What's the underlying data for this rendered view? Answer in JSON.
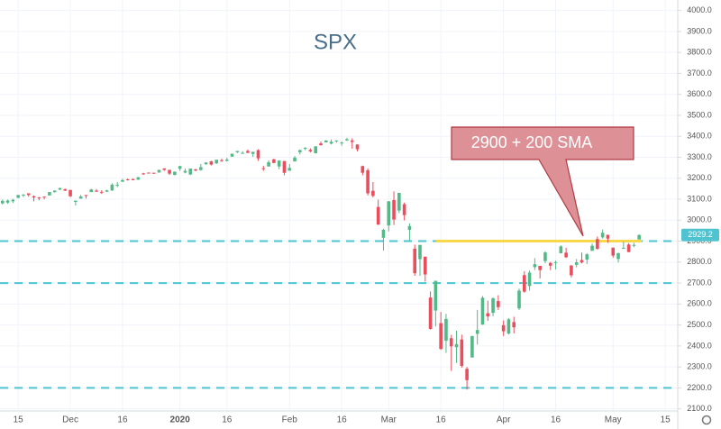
{
  "chart_data": {
    "type": "candlestick",
    "title": "SPX",
    "annotation": "2900 + 200 SMA",
    "up_color": "#53b987",
    "down_color": "#eb4d5c",
    "level_color": "#4fc3d0",
    "sma_color": "#f7d84a",
    "levels": [
      2900,
      2700,
      2200
    ],
    "sma_level": 2900,
    "grid": true,
    "ylim": [
      2090,
      4050
    ],
    "yticks": [
      {
        "value": 2100,
        "label": "2100.0"
      },
      {
        "value": 2200,
        "label": "2200.0"
      },
      {
        "value": 2300,
        "label": "2300.0"
      },
      {
        "value": 2400,
        "label": "2400.0"
      },
      {
        "value": 2500,
        "label": "2500.0"
      },
      {
        "value": 2600,
        "label": "2600.0"
      },
      {
        "value": 2700,
        "label": "2700.0"
      },
      {
        "value": 2800,
        "label": "2800.0"
      },
      {
        "value": 2900,
        "label": "2900.0"
      },
      {
        "value": 3000,
        "label": "3000.0"
      },
      {
        "value": 3100,
        "label": "3100.0"
      },
      {
        "value": 3200,
        "label": "3200.0"
      },
      {
        "value": 3300,
        "label": "3300.0"
      },
      {
        "value": 3400,
        "label": "3400.0"
      },
      {
        "value": 3500,
        "label": "3500.0"
      },
      {
        "value": 3600,
        "label": "3600.0"
      },
      {
        "value": 3700,
        "label": "3700.0"
      },
      {
        "value": 3800,
        "label": "3800.0"
      },
      {
        "value": 3900,
        "label": "3900.0"
      },
      {
        "value": 4000,
        "label": "4000.0"
      }
    ],
    "categories": [
      null,
      null,
      null,
      "15",
      null,
      null,
      null,
      null,
      null,
      null,
      null,
      null,
      null,
      "Dec",
      null,
      null,
      null,
      null,
      null,
      null,
      null,
      null,
      null,
      "16",
      null,
      null,
      null,
      null,
      null,
      null,
      null,
      null,
      null,
      null,
      "2020",
      null,
      null,
      null,
      null,
      null,
      null,
      null,
      null,
      "16",
      null,
      null,
      null,
      null,
      null,
      null,
      null,
      null,
      null,
      null,
      null,
      "Feb",
      null,
      null,
      null,
      null,
      null,
      null,
      null,
      null,
      null,
      "16",
      null,
      null,
      null,
      null,
      null,
      null,
      null,
      null,
      "Mar",
      null,
      null,
      null,
      null,
      null,
      null,
      null,
      null,
      null,
      "16",
      null,
      null,
      null,
      null,
      null,
      null,
      null,
      null,
      null,
      null,
      null,
      "Apr",
      null,
      null,
      null,
      null,
      null,
      null,
      null,
      null,
      null,
      "16",
      null,
      null,
      null,
      null,
      null,
      null,
      null,
      null,
      null,
      null,
      "May",
      null,
      null,
      null,
      null,
      null,
      null,
      null,
      null,
      null,
      "15"
    ],
    "ohlc": [
      [
        3080,
        3098,
        3075,
        3092
      ],
      [
        3084,
        3098,
        3078,
        3094
      ],
      [
        3090,
        3102,
        3082,
        3097
      ],
      [
        3107,
        3120,
        3104,
        3120
      ],
      [
        3118,
        3124,
        3110,
        3122
      ],
      [
        3128,
        3128,
        3112,
        3120
      ],
      [
        3114,
        3118,
        3090,
        3108
      ],
      [
        3108,
        3111,
        3095,
        3104
      ],
      [
        3112,
        3112,
        3099,
        3110
      ],
      [
        3118,
        3134,
        3117,
        3134
      ],
      [
        3134,
        3142,
        3131,
        3141
      ],
      [
        3146,
        3155,
        3143,
        3153
      ],
      [
        3148,
        3150,
        3139,
        3141
      ],
      [
        3144,
        3145,
        3110,
        3114
      ],
      [
        3087,
        3094,
        3070,
        3093
      ],
      [
        3103,
        3120,
        3102,
        3113
      ],
      [
        3120,
        3120,
        3103,
        3117
      ],
      [
        3134,
        3150,
        3134,
        3146
      ],
      [
        3141,
        3148,
        3135,
        3136
      ],
      [
        3135,
        3143,
        3125,
        3133
      ],
      [
        3136,
        3145,
        3134,
        3142
      ],
      [
        3142,
        3176,
        3139,
        3169
      ],
      [
        3167,
        3182,
        3157,
        3169
      ],
      [
        3183,
        3198,
        3183,
        3191
      ],
      [
        3195,
        3199,
        3189,
        3192
      ],
      [
        3196,
        3199,
        3190,
        3191
      ],
      [
        3193,
        3206,
        3192,
        3205
      ],
      [
        3223,
        3226,
        3216,
        3221
      ],
      [
        3227,
        3227,
        3222,
        3224
      ],
      [
        3226,
        3227,
        3222,
        3223
      ],
      [
        3227,
        3240,
        3227,
        3240
      ],
      [
        3247,
        3247,
        3235,
        3240
      ],
      [
        3240,
        3240,
        3216,
        3222
      ],
      [
        3216,
        3232,
        3213,
        3231
      ],
      [
        3245,
        3258,
        3235,
        3258
      ],
      [
        3227,
        3246,
        3223,
        3235
      ],
      [
        3218,
        3247,
        3215,
        3246
      ],
      [
        3242,
        3245,
        3233,
        3237
      ],
      [
        3239,
        3268,
        3236,
        3253
      ],
      [
        3267,
        3276,
        3264,
        3275
      ],
      [
        3281,
        3283,
        3261,
        3265
      ],
      [
        3271,
        3288,
        3268,
        3288
      ],
      [
        3286,
        3294,
        3278,
        3283
      ],
      [
        3283,
        3298,
        3280,
        3289
      ],
      [
        3303,
        3317,
        3302,
        3317
      ],
      [
        3324,
        3330,
        3320,
        3330
      ],
      [
        3321,
        3329,
        3316,
        3321
      ],
      [
        3330,
        3337,
        3320,
        3321
      ],
      [
        3316,
        3326,
        3302,
        3326
      ],
      [
        3334,
        3338,
        3283,
        3295
      ],
      [
        3248,
        3259,
        3235,
        3244
      ],
      [
        3256,
        3285,
        3256,
        3276
      ],
      [
        3290,
        3293,
        3271,
        3273
      ],
      [
        3256,
        3286,
        3243,
        3284
      ],
      [
        3282,
        3282,
        3214,
        3226
      ],
      [
        3236,
        3268,
        3236,
        3249
      ],
      [
        3280,
        3306,
        3280,
        3298
      ],
      [
        3324,
        3337,
        3313,
        3334
      ],
      [
        3345,
        3348,
        3334,
        3345
      ],
      [
        3335,
        3342,
        3323,
        3328
      ],
      [
        3319,
        3353,
        3318,
        3352
      ],
      [
        3366,
        3375,
        3355,
        3358
      ],
      [
        3371,
        3382,
        3371,
        3380
      ],
      [
        3365,
        3385,
        3361,
        3374
      ],
      [
        3378,
        3381,
        3369,
        3380
      ],
      [
        3370,
        3375,
        3355,
        3370
      ],
      [
        3380,
        3393,
        3378,
        3386
      ],
      [
        3380,
        3390,
        3341,
        3373
      ],
      [
        3361,
        3361,
        3328,
        3338
      ],
      [
        3258,
        3260,
        3214,
        3226
      ],
      [
        3238,
        3247,
        3118,
        3128
      ],
      [
        3140,
        3182,
        3108,
        3116
      ],
      [
        3063,
        3098,
        2977,
        2979
      ],
      [
        2916,
        2959,
        2855,
        2954
      ],
      [
        2975,
        3091,
        2946,
        3090
      ],
      [
        3096,
        3137,
        2977,
        3003
      ],
      [
        3046,
        3130,
        3034,
        3130
      ],
      [
        3076,
        3084,
        2999,
        3024
      ],
      [
        2954,
        2985,
        2902,
        2972
      ],
      [
        2864,
        2883,
        2735,
        2747
      ],
      [
        2814,
        2882,
        2734,
        2882
      ],
      [
        2826,
        2826,
        2707,
        2741
      ],
      [
        2631,
        2660,
        2478,
        2481
      ],
      [
        2569,
        2711,
        2493,
        2711
      ],
      [
        2509,
        2562,
        2381,
        2386
      ],
      [
        2425,
        2553,
        2367,
        2529
      ],
      [
        2437,
        2453,
        2281,
        2398
      ],
      [
        2394,
        2473,
        2319,
        2409
      ],
      [
        2431,
        2454,
        2296,
        2305
      ],
      [
        2291,
        2300,
        2192,
        2237
      ],
      [
        2345,
        2449,
        2345,
        2447
      ],
      [
        2458,
        2572,
        2407,
        2476
      ],
      [
        2502,
        2638,
        2501,
        2630
      ],
      [
        2556,
        2616,
        2520,
        2541
      ],
      [
        2558,
        2632,
        2541,
        2627
      ],
      [
        2614,
        2642,
        2571,
        2585
      ],
      [
        2499,
        2522,
        2448,
        2470
      ],
      [
        2459,
        2533,
        2455,
        2527
      ],
      [
        2514,
        2539,
        2460,
        2489
      ],
      [
        2579,
        2674,
        2571,
        2664
      ],
      [
        2738,
        2757,
        2654,
        2659
      ],
      [
        2686,
        2760,
        2664,
        2750
      ],
      [
        2776,
        2819,
        2762,
        2790
      ],
      [
        2782,
        2782,
        2722,
        2762
      ],
      [
        2805,
        2852,
        2795,
        2846
      ],
      [
        2796,
        2801,
        2762,
        2783
      ],
      [
        2800,
        2807,
        2765,
        2800
      ],
      [
        2842,
        2880,
        2842,
        2875
      ],
      [
        2845,
        2868,
        2820,
        2823
      ],
      [
        2784,
        2785,
        2727,
        2737
      ],
      [
        2787,
        2815,
        2775,
        2799
      ],
      [
        2810,
        2845,
        2794,
        2798
      ],
      [
        2812,
        2842,
        2791,
        2837
      ],
      [
        2854,
        2888,
        2853,
        2878
      ],
      [
        2910,
        2922,
        2860,
        2863
      ],
      [
        2918,
        2955,
        2912,
        2940
      ],
      [
        2930,
        2931,
        2892,
        2912
      ],
      [
        2869,
        2869,
        2821,
        2831
      ],
      [
        2815,
        2844,
        2798,
        2843
      ],
      [
        2868,
        2898,
        2863,
        2868
      ],
      [
        2884,
        2891,
        2847,
        2848
      ],
      [
        2879,
        2892,
        2871,
        2882
      ],
      [
        2908,
        2932,
        2908,
        2929.2
      ],
      null,
      null,
      null,
      null,
      null
    ]
  }
}
